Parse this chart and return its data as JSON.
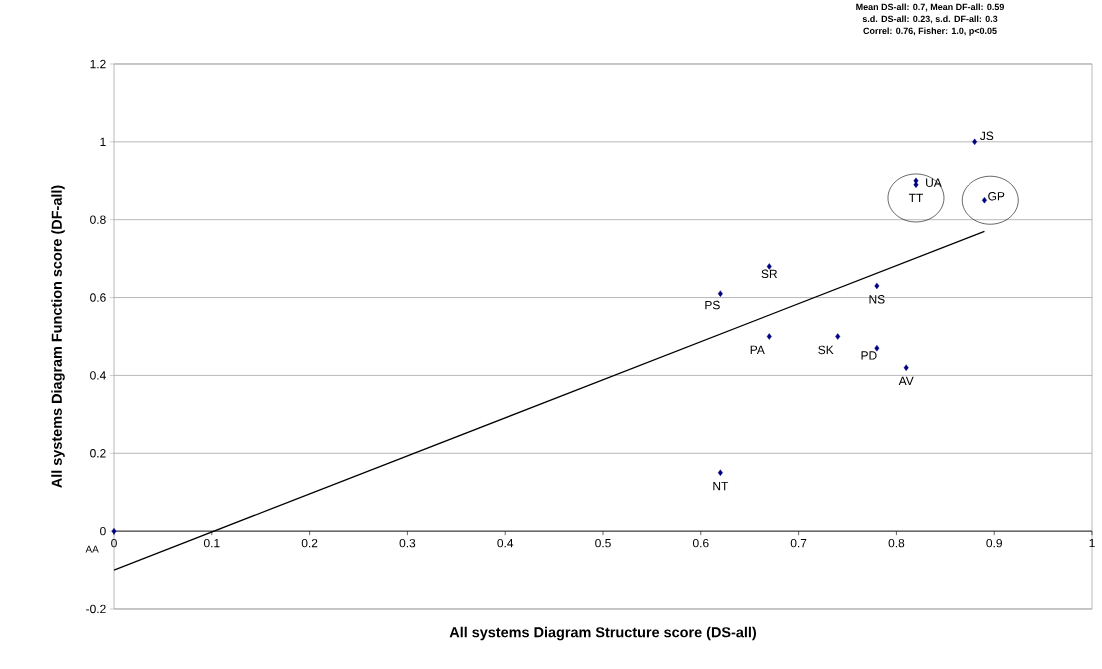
{
  "chart_data": {
    "type": "scatter",
    "xlabel": "All systems Diagram Structure score (DS-all)",
    "ylabel": "All systems Diagram Function score (DF-all)",
    "x": [
      0,
      0.62,
      0.62,
      0.67,
      0.67,
      0.74,
      0.78,
      0.78,
      0.81,
      0.82,
      0.82,
      0.88,
      0.89
    ],
    "series": [
      {
        "color": "#000080",
        "marker": "diamond",
        "values": [
          0,
          0.15,
          0.61,
          0.68,
          0.5,
          0.5,
          0.63,
          0.47,
          0.42,
          0.89,
          0.9,
          1.0,
          0.85
        ]
      },
      {
        "type": "line",
        "color": "#000000",
        "marker": "none",
        "line_style": "solid",
        "x": [
          0,
          0.89
        ],
        "values": [
          -0.1,
          0.77
        ]
      }
    ],
    "xlim": [
      0,
      1
    ],
    "ylim": [
      -0.2,
      1.2
    ],
    "xticks": [
      0,
      0.1,
      0.2,
      0.3,
      0.4,
      0.5,
      0.6,
      0.7,
      0.8,
      0.9,
      1
    ],
    "yticks": [
      -0.2,
      0,
      0.2,
      0.4,
      0.6,
      0.8,
      1,
      1.2
    ],
    "grid": "y",
    "annotations": [
      "Mean DS-all: 0.7, Mean DF-all: 0.59",
      "s.d. DS-all: 0.23, s.d. DF-all: 0.3",
      "Correl: 0.76, Fisher: 1.0, p<0.05",
      {
        "text": "AA",
        "x": 0,
        "y": 0
      },
      {
        "text": "NT",
        "x": 0.62,
        "y": 0.15
      },
      {
        "text": "PS",
        "x": 0.62,
        "y": 0.61
      },
      {
        "text": "SR",
        "x": 0.67,
        "y": 0.68
      },
      {
        "text": "PA",
        "x": 0.67,
        "y": 0.5
      },
      {
        "text": "SK",
        "x": 0.74,
        "y": 0.5
      },
      {
        "text": "NS",
        "x": 0.78,
        "y": 0.63
      },
      {
        "text": "PD",
        "x": 0.78,
        "y": 0.47
      },
      {
        "text": "AV",
        "x": 0.81,
        "y": 0.42
      },
      {
        "text": "TT",
        "x": 0.82,
        "y": 0.89
      },
      {
        "text": "UA",
        "x": 0.82,
        "y": 0.9
      },
      {
        "text": "JS",
        "x": 0.88,
        "y": 1.0
      },
      {
        "text": "GP",
        "x": 0.89,
        "y": 0.85
      }
    ]
  }
}
